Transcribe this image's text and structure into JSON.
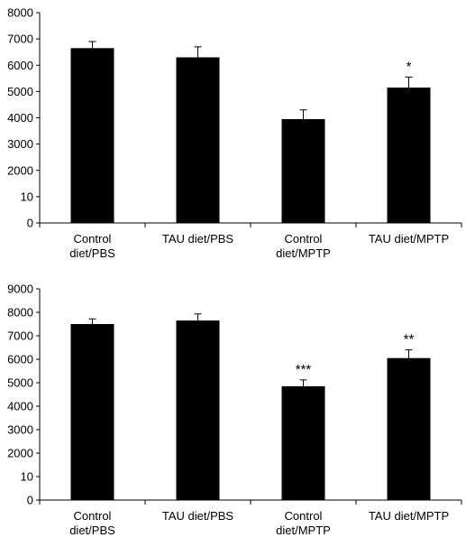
{
  "chart_data": [
    {
      "type": "bar",
      "categories": [
        [
          "Control",
          "diet/PBS"
        ],
        [
          "TAU diet/PBS"
        ],
        [
          "Control",
          "diet/MPTP"
        ],
        [
          "TAU diet/MPTP"
        ]
      ],
      "values": [
        6650,
        6300,
        3950,
        5150
      ],
      "errors": [
        250,
        400,
        350,
        400
      ],
      "annotations": [
        "",
        "",
        "",
        "*"
      ],
      "yticks": [
        "0",
        "10",
        "2000",
        "3000",
        "4000",
        "5000",
        "6000",
        "7000",
        "8000"
      ],
      "ylim": [
        0,
        8000
      ],
      "grid": false,
      "bar_color": "#000000"
    },
    {
      "type": "bar",
      "categories": [
        [
          "Control",
          "diet/PBS"
        ],
        [
          "TAU diet/PBS"
        ],
        [
          "Control",
          "diet/MPTP"
        ],
        [
          "TAU diet/MPTP"
        ]
      ],
      "values": [
        7500,
        7650,
        4850,
        6050
      ],
      "errors": [
        220,
        280,
        270,
        350
      ],
      "annotations": [
        "",
        "",
        "***",
        "**"
      ],
      "yticks": [
        "0",
        "10",
        "2000",
        "3000",
        "4000",
        "5000",
        "6000",
        "7000",
        "8000",
        "9000"
      ],
      "ylim": [
        0,
        9000
      ],
      "grid": false,
      "bar_color": "#000000"
    }
  ]
}
